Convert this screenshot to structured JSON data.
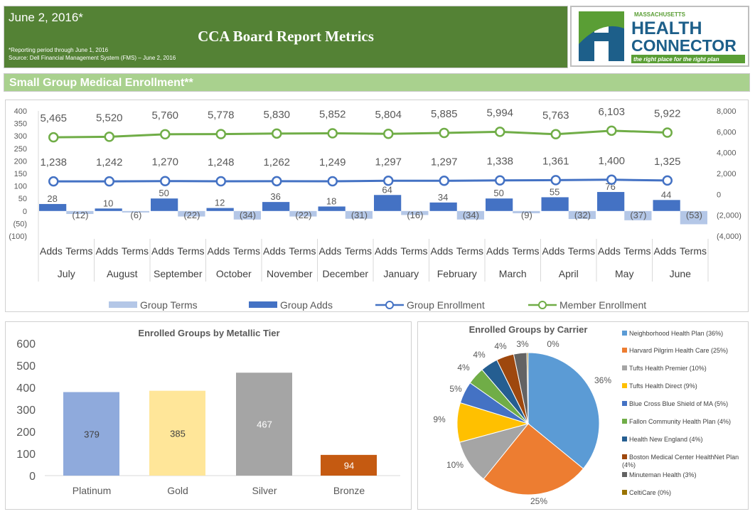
{
  "header": {
    "date": "June 2, 2016*",
    "title": "CCA Board Report Metrics",
    "note1": "*Reporting period through June 1, 2016",
    "note2": "Source: Dell Financial Management System (FMS) – June 2, 2016"
  },
  "logo": {
    "line1": "MASSACHUSETTS",
    "line2": "HEALTH",
    "line3": "CONNECTOR",
    "tagline": "the right place for the right plan"
  },
  "section": {
    "title": "Small Group Medical Enrollment**"
  },
  "chart_data": [
    {
      "type": "bar+line",
      "categories": [
        "July",
        "August",
        "September",
        "October",
        "November",
        "December",
        "January",
        "February",
        "March",
        "April",
        "May",
        "June"
      ],
      "subcategories": [
        "Adds",
        "Terms"
      ],
      "left_axis": {
        "ylim": [
          -100,
          400
        ],
        "ticks": [
          "400",
          "350",
          "300",
          "250",
          "200",
          "150",
          "100",
          "50",
          "0",
          "(50)",
          "(100)"
        ]
      },
      "right_axis": {
        "ylim": [
          -4000,
          8000
        ],
        "ticks": [
          "8,000",
          "6,000",
          "4,000",
          "2,000",
          "0",
          "(2,000)",
          "(4,000)"
        ]
      },
      "series": [
        {
          "name": "Group Terms",
          "type": "bar",
          "axis": "left",
          "color": "#b4c7e7",
          "values": [
            -12,
            -6,
            -22,
            -34,
            -22,
            -31,
            -16,
            -34,
            -9,
            -32,
            -37,
            -53
          ],
          "labels": [
            "(12)",
            "(6)",
            "(22)",
            "(34)",
            "(22)",
            "(31)",
            "(16)",
            "(34)",
            "(9)",
            "(32)",
            "(37)",
            "(53)"
          ]
        },
        {
          "name": "Group Adds",
          "type": "bar",
          "axis": "left",
          "color": "#4472c4",
          "values": [
            28,
            10,
            50,
            12,
            36,
            18,
            64,
            34,
            50,
            55,
            76,
            44
          ],
          "labels": [
            "28",
            "10",
            "50",
            "12",
            "36",
            "18",
            "64",
            "34",
            "50",
            "55",
            "76",
            "44"
          ]
        },
        {
          "name": "Group Enrollment",
          "type": "line",
          "axis": "right",
          "color": "#4472c4",
          "values": [
            1238,
            1242,
            1270,
            1248,
            1262,
            1249,
            1297,
            1297,
            1338,
            1361,
            1400,
            1325
          ],
          "labels": [
            "1,238",
            "1,242",
            "1,270",
            "1,248",
            "1,262",
            "1,249",
            "1,297",
            "1,297",
            "1,338",
            "1,361",
            "1,400",
            "1,325"
          ]
        },
        {
          "name": "Member Enrollment",
          "type": "line",
          "axis": "right",
          "color": "#70ad47",
          "values": [
            5465,
            5520,
            5760,
            5778,
            5830,
            5852,
            5804,
            5885,
            5994,
            5763,
            6103,
            5922
          ],
          "labels": [
            "5,465",
            "5,520",
            "5,760",
            "5,778",
            "5,830",
            "5,852",
            "5,804",
            "5,885",
            "5,994",
            "5,763",
            "6,103",
            "5,922"
          ]
        }
      ],
      "legend": "bottom"
    },
    {
      "type": "bar",
      "title": "Enrolled Groups by Metallic Tier",
      "categories": [
        "Platinum",
        "Gold",
        "Silver",
        "Bronze"
      ],
      "values": [
        379,
        385,
        467,
        94
      ],
      "colors": [
        "#8faadc",
        "#ffe699",
        "#a5a5a5",
        "#c55a11"
      ],
      "ylim": [
        0,
        600
      ],
      "ticks": [
        "600",
        "500",
        "400",
        "300",
        "200",
        "100",
        "0"
      ]
    },
    {
      "type": "pie",
      "title": "Enrolled Groups by Carrier",
      "legend": "right",
      "slices": [
        {
          "name": "Neighborhood Health Plan (36%)",
          "value": 36,
          "label": "36%",
          "color": "#5b9bd5"
        },
        {
          "name": "Harvard Pilgrim Health Care (25%)",
          "value": 25,
          "label": "25%",
          "color": "#ed7d31"
        },
        {
          "name": "Tufts Health Premier (10%)",
          "value": 10,
          "label": "10%",
          "color": "#a5a5a5"
        },
        {
          "name": "Tufts Health Direct (9%)",
          "value": 9,
          "label": "9%",
          "color": "#ffc000"
        },
        {
          "name": "Blue Cross Blue Shield of MA (5%)",
          "value": 5,
          "label": "5%",
          "color": "#4472c4"
        },
        {
          "name": "Fallon Community Health Plan (4%)",
          "value": 4,
          "label": "4%",
          "color": "#70ad47"
        },
        {
          "name": "Health New England (4%)",
          "value": 4,
          "label": "4%",
          "color": "#255e91"
        },
        {
          "name": "Boston Medical Center HealthNet Plan (4%)",
          "value": 4,
          "label": "4%",
          "color": "#9e480e"
        },
        {
          "name": "Minuteman Health (3%)",
          "value": 3,
          "label": "3%",
          "color": "#636363"
        },
        {
          "name": "CeltiCare (0%)",
          "value": 0.3,
          "label": "0%",
          "color": "#997300"
        }
      ]
    }
  ]
}
